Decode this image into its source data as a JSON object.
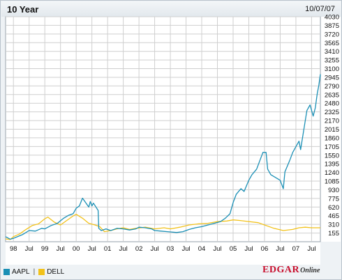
{
  "header": {
    "title": "10 Year",
    "date": "10/07/07"
  },
  "legend": {
    "separator": "|"
  },
  "brand": {
    "part1": "EDGAR",
    "part2": "Online"
  },
  "colors": {
    "AAPL": "#1a8fb5",
    "DELL": "#f2c21b",
    "grid": "#cfcfcf",
    "plot_bg": "#ffffff"
  },
  "chart_data": {
    "type": "line",
    "title": "10 Year",
    "xlabel": "",
    "ylabel": "",
    "xlim": [
      1997.75,
      2007.78
    ],
    "ylim": [
      0,
      4030
    ],
    "y_ticks": [
      155,
      310,
      465,
      620,
      775,
      930,
      1085,
      1240,
      1395,
      1550,
      1705,
      1860,
      2015,
      2170,
      2325,
      2480,
      2635,
      2790,
      2945,
      3100,
      3255,
      3410,
      3565,
      3720,
      3875,
      4030
    ],
    "x_ticks": [
      {
        "label": "98",
        "x": 1998.0
      },
      {
        "label": "Jul",
        "x": 1998.5
      },
      {
        "label": "99",
        "x": 1999.0
      },
      {
        "label": "Jul",
        "x": 1999.5
      },
      {
        "label": "00",
        "x": 2000.0
      },
      {
        "label": "Jul",
        "x": 2000.5
      },
      {
        "label": "01",
        "x": 2001.0
      },
      {
        "label": "Jul",
        "x": 2001.5
      },
      {
        "label": "02",
        "x": 2002.0
      },
      {
        "label": "Jul",
        "x": 2002.5
      },
      {
        "label": "03",
        "x": 2003.0
      },
      {
        "label": "Jul",
        "x": 2003.5
      },
      {
        "label": "04",
        "x": 2004.0
      },
      {
        "label": "Jul",
        "x": 2004.5
      },
      {
        "label": "05",
        "x": 2005.0
      },
      {
        "label": "Jul",
        "x": 2005.5
      },
      {
        "label": "06",
        "x": 2006.0
      },
      {
        "label": "Jul",
        "x": 2006.5
      },
      {
        "label": "07",
        "x": 2007.0
      },
      {
        "label": "Jul",
        "x": 2007.5
      }
    ],
    "grid": true,
    "legend_position": "bottom-left",
    "series": [
      {
        "name": "AAPL",
        "x": [
          1997.75,
          1997.9,
          1998.0,
          1998.15,
          1998.3,
          1998.5,
          1998.7,
          1998.9,
          1999.0,
          1999.2,
          1999.4,
          1999.6,
          1999.75,
          1999.9,
          2000.0,
          2000.1,
          2000.2,
          2000.3,
          2000.4,
          2000.45,
          2000.5,
          2000.55,
          2000.7,
          2000.72,
          2000.8,
          2000.95,
          2001.1,
          2001.3,
          2001.5,
          2001.7,
          2001.9,
          2002.0,
          2002.2,
          2002.4,
          2002.5,
          2002.7,
          2002.9,
          2003.0,
          2003.2,
          2003.4,
          2003.6,
          2003.8,
          2004.0,
          2004.2,
          2004.4,
          2004.6,
          2004.75,
          2004.9,
          2005.0,
          2005.1,
          2005.25,
          2005.35,
          2005.5,
          2005.6,
          2005.75,
          2005.85,
          2005.95,
          2006.05,
          2006.1,
          2006.2,
          2006.35,
          2006.5,
          2006.6,
          2006.65,
          2006.8,
          2006.9,
          2007.0,
          2007.1,
          2007.15,
          2007.25,
          2007.35,
          2007.45,
          2007.55,
          2007.62,
          2007.68,
          2007.73,
          2007.78
        ],
        "values": [
          90,
          45,
          60,
          95,
          130,
          200,
          190,
          240,
          230,
          290,
          330,
          420,
          470,
          500,
          600,
          640,
          780,
          700,
          620,
          720,
          640,
          690,
          560,
          240,
          200,
          230,
          200,
          240,
          230,
          210,
          230,
          260,
          250,
          230,
          200,
          190,
          180,
          175,
          165,
          180,
          220,
          250,
          270,
          300,
          330,
          360,
          420,
          500,
          700,
          850,
          950,
          900,
          1100,
          1200,
          1300,
          1450,
          1600,
          1600,
          1300,
          1200,
          1150,
          1100,
          950,
          1250,
          1450,
          1600,
          1700,
          1800,
          1650,
          2000,
          2350,
          2450,
          2250,
          2400,
          2650,
          2800,
          3000
        ]
      },
      {
        "name": "DELL",
        "x": [
          1997.75,
          1997.9,
          1998.0,
          1998.2,
          1998.4,
          1998.6,
          1998.8,
          1999.0,
          1999.1,
          1999.3,
          1999.5,
          1999.7,
          1999.9,
          2000.0,
          2000.2,
          2000.4,
          2000.6,
          2000.75,
          2000.9,
          2001.1,
          2001.3,
          2001.5,
          2001.7,
          2001.9,
          2002.2,
          2002.5,
          2002.8,
          2003.0,
          2003.3,
          2003.6,
          2003.9,
          2004.2,
          2004.5,
          2004.8,
          2005.0,
          2005.2,
          2005.5,
          2005.8,
          2006.0,
          2006.3,
          2006.6,
          2006.9,
          2007.1,
          2007.3,
          2007.5,
          2007.78
        ],
        "values": [
          50,
          40,
          90,
          140,
          220,
          290,
          320,
          410,
          440,
          350,
          300,
          380,
          460,
          490,
          420,
          330,
          300,
          270,
          180,
          200,
          230,
          250,
          220,
          240,
          260,
          230,
          250,
          230,
          260,
          300,
          320,
          330,
          360,
          370,
          390,
          380,
          360,
          340,
          300,
          240,
          200,
          220,
          250,
          260,
          250,
          250
        ]
      }
    ]
  }
}
